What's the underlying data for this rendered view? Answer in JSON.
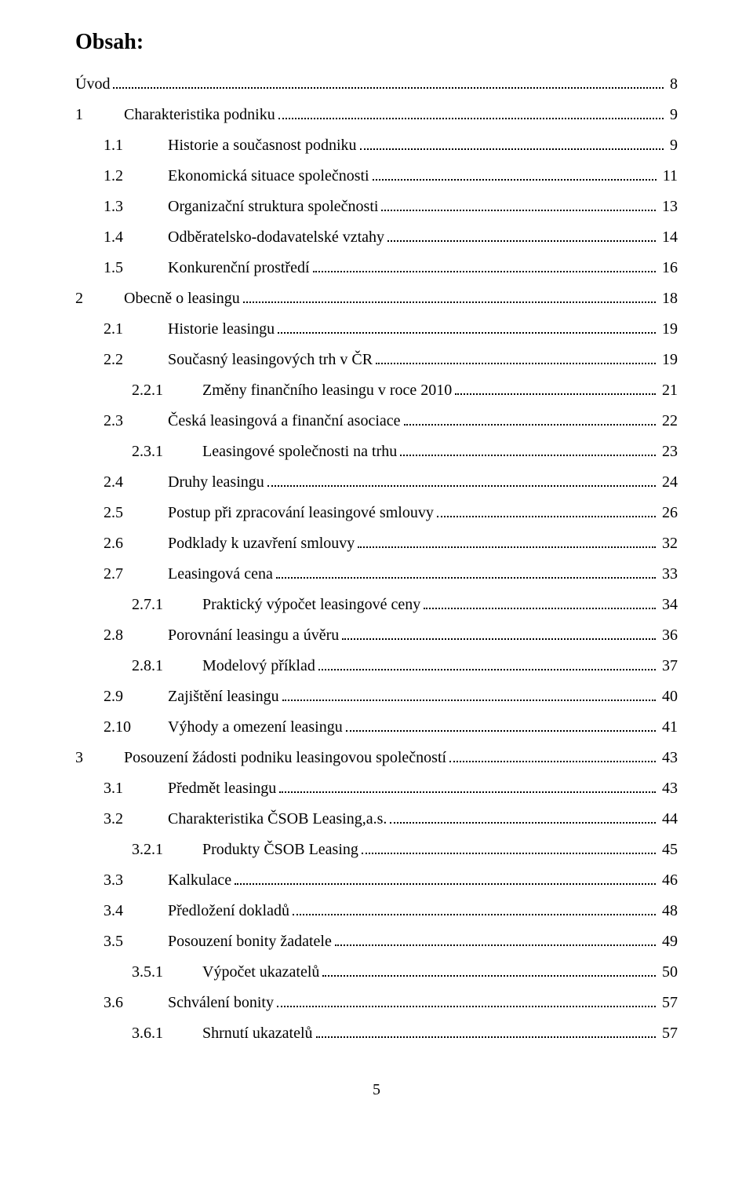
{
  "heading": "Obsah:",
  "page_number": "5",
  "entries": [
    {
      "level": 0,
      "num": "",
      "title": "Úvod",
      "page": "8"
    },
    {
      "level": 1,
      "num": "1",
      "title": "Charakteristika podniku",
      "page": "9"
    },
    {
      "level": 2,
      "num": "1.1",
      "title": "Historie a současnost podniku",
      "page": "9"
    },
    {
      "level": 2,
      "num": "1.2",
      "title": "Ekonomická situace společnosti",
      "page": "11"
    },
    {
      "level": 2,
      "num": "1.3",
      "title": "Organizační struktura společnosti",
      "page": "13"
    },
    {
      "level": 2,
      "num": "1.4",
      "title": "Odběratelsko-dodavatelské vztahy",
      "page": "14"
    },
    {
      "level": 2,
      "num": "1.5",
      "title": "Konkurenční prostředí",
      "page": "16"
    },
    {
      "level": 1,
      "num": "2",
      "title": "Obecně o leasingu",
      "page": "18"
    },
    {
      "level": 2,
      "num": "2.1",
      "title": "Historie leasingu",
      "page": "19"
    },
    {
      "level": 2,
      "num": "2.2",
      "title": "Současný leasingových trh v ČR",
      "page": "19"
    },
    {
      "level": 3,
      "num": "2.2.1",
      "title": "Změny finančního leasingu v roce 2010",
      "page": "21"
    },
    {
      "level": 2,
      "num": "2.3",
      "title": "Česká leasingová a finanční asociace",
      "page": "22"
    },
    {
      "level": 3,
      "num": "2.3.1",
      "title": "Leasingové společnosti na trhu",
      "page": "23"
    },
    {
      "level": 2,
      "num": "2.4",
      "title": "Druhy leasingu",
      "page": "24"
    },
    {
      "level": 2,
      "num": "2.5",
      "title": "Postup při zpracování leasingové smlouvy",
      "page": "26"
    },
    {
      "level": 2,
      "num": "2.6",
      "title": "Podklady k uzavření smlouvy",
      "page": "32"
    },
    {
      "level": 2,
      "num": "2.7",
      "title": "Leasingová cena",
      "page": "33"
    },
    {
      "level": 3,
      "num": "2.7.1",
      "title": "Praktický výpočet leasingové ceny",
      "page": "34"
    },
    {
      "level": 2,
      "num": "2.8",
      "title": "Porovnání leasingu a úvěru",
      "page": "36"
    },
    {
      "level": 3,
      "num": "2.8.1",
      "title": "Modelový příklad",
      "page": "37"
    },
    {
      "level": 2,
      "num": "2.9",
      "title": "Zajištění leasingu",
      "page": "40"
    },
    {
      "level": 2,
      "num": "2.10",
      "title": "Výhody a omezení leasingu",
      "page": "41"
    },
    {
      "level": 1,
      "num": "3",
      "title": "Posouzení žádosti podniku leasingovou společností",
      "page": "43"
    },
    {
      "level": 2,
      "num": "3.1",
      "title": "Předmět leasingu",
      "page": "43"
    },
    {
      "level": 2,
      "num": "3.2",
      "title": "Charakteristika ČSOB Leasing,a.s.",
      "page": "44"
    },
    {
      "level": 3,
      "num": "3.2.1",
      "title": "Produkty ČSOB Leasing",
      "page": "45"
    },
    {
      "level": 2,
      "num": "3.3",
      "title": "Kalkulace",
      "page": "46"
    },
    {
      "level": 2,
      "num": "3.4",
      "title": "Předložení dokladů",
      "page": "48"
    },
    {
      "level": 2,
      "num": "3.5",
      "title": "Posouzení bonity žadatele",
      "page": "49"
    },
    {
      "level": 3,
      "num": "3.5.1",
      "title": "Výpočet ukazatelů",
      "page": "50"
    },
    {
      "level": 2,
      "num": "3.6",
      "title": "Schválení bonity",
      "page": "57"
    },
    {
      "level": 3,
      "num": "3.6.1",
      "title": "Shrnutí ukazatelů",
      "page": "57"
    }
  ]
}
